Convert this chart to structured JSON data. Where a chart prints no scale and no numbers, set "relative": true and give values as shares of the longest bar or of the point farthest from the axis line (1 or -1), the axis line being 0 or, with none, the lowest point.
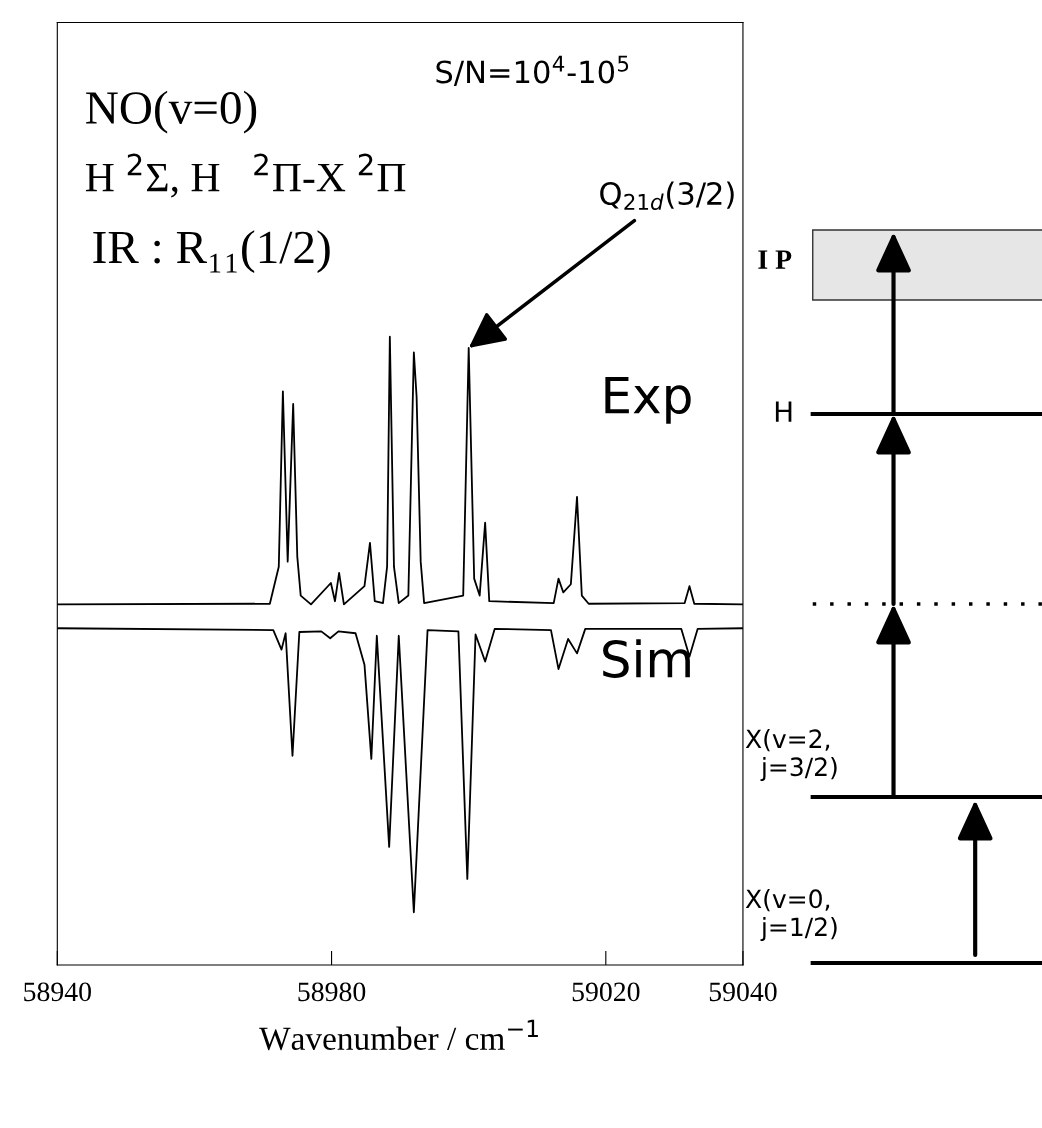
{
  "chart_data": [
    {
      "type": "line",
      "xlabel": "Wavenumber / cm$^{−1}$",
      "relative": true,
      "xlim": [
        58940,
        59040
      ],
      "xticks": [
        58940,
        58980,
        59020,
        59040
      ],
      "marker": "none",
      "line_style": "solid",
      "series": [
        {
          "name": "Exp",
          "color": "#000000",
          "x": [
            58940,
            58971,
            58972.3,
            58972.9,
            58973.6,
            58974.4,
            58975.0,
            58975.5,
            58977,
            58979.9,
            58980.5,
            58981.1,
            58981.8,
            58984.8,
            58985.6,
            58986.3,
            58987.5,
            58988.1,
            58988.5,
            58989.1,
            58989.8,
            58991.2,
            58992.0,
            58992.4,
            58993.0,
            58993.5,
            58999.2,
            59000.0,
            59000.8,
            59001.6,
            59002.4,
            59003.0,
            59012.4,
            59013.1,
            59013.8,
            59014.9,
            59015.8,
            59016.5,
            59017.5,
            59031.5,
            59032.2,
            59032.9,
            59040
          ],
          "values": [
            0.574,
            0.575,
            0.634,
            0.913,
            0.642,
            0.893,
            0.65,
            0.588,
            0.574,
            0.608,
            0.579,
            0.624,
            0.574,
            0.603,
            0.672,
            0.579,
            0.576,
            0.634,
            1.0,
            0.634,
            0.576,
            0.588,
            0.975,
            0.905,
            0.642,
            0.576,
            0.588,
            0.982,
            0.615,
            0.588,
            0.704,
            0.579,
            0.576,
            0.615,
            0.593,
            0.606,
            0.745,
            0.588,
            0.575,
            0.576,
            0.603,
            0.575,
            0.574
          ]
        },
        {
          "name": "Sim",
          "color": "#000000",
          "x": [
            58940,
            58971.5,
            58972.7,
            58973.3,
            58974.3,
            58975.3,
            58978.5,
            58979.8,
            58981,
            58983.5,
            58984.8,
            58985.8,
            58986.6,
            58988.4,
            58989.8,
            58992.0,
            58994,
            58998.5,
            58999.8,
            59001,
            59002.4,
            59003.8,
            59012,
            59013.1,
            59014.5,
            59015.8,
            59017,
            59031,
            59032.2,
            59033.4,
            59040
          ],
          "values": [
            0.536,
            0.533,
            0.502,
            0.528,
            0.333,
            0.53,
            0.531,
            0.52,
            0.531,
            0.528,
            0.478,
            0.328,
            0.524,
            0.188,
            0.524,
            0.084,
            0.533,
            0.531,
            0.137,
            0.526,
            0.483,
            0.535,
            0.533,
            0.471,
            0.519,
            0.496,
            0.535,
            0.535,
            0.491,
            0.535,
            0.536
          ]
        }
      ],
      "annotations": [
        "NO(v=0)",
        "H $^{2}$Σ, H   $^{2}$Π-X $^{2}$Π",
        "IR : R₁₁(1/2)",
        "S/N=10$^{4}$-10$^{5}$",
        {
          "text": "Q$_{21d}$(3/2)",
          "x": 59000.0,
          "y": 0.982
        }
      ]
    },
    {
      "type": "other",
      "annotations": [
        "I P",
        "H",
        "X(v=2,\n  j=3/2)",
        "X(v=0,\n  j=1/2)"
      ]
    }
  ]
}
